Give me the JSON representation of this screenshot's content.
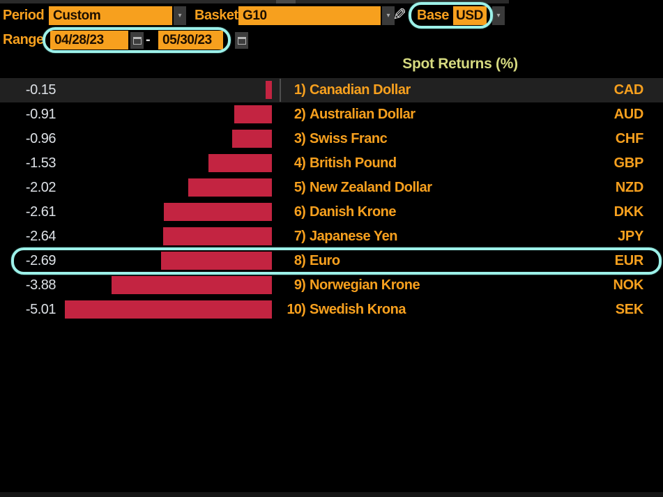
{
  "topbar": {
    "period": {
      "label": "Period",
      "value": "Custom"
    },
    "basket": {
      "label": "Basket",
      "value": "G10"
    },
    "base": {
      "label": "Base",
      "value": "USD"
    },
    "range": {
      "label": "Range",
      "start": "04/28/23",
      "separator": "-",
      "end": "05/30/23"
    }
  },
  "icons": {
    "pencil_glyph": "✎",
    "dropdown_glyph": "▾"
  },
  "chart_data": {
    "type": "bar",
    "orientation": "horizontal",
    "title": "Spot Returns (%)",
    "xlim": [
      -5.5,
      0
    ],
    "grid": false,
    "legend": "none",
    "categories": [
      "Canadian Dollar",
      "Australian Dollar",
      "Swiss Franc",
      "British Pound",
      "New Zealand Dollar",
      "Danish Krone",
      "Japanese Yen",
      "Euro",
      "Norwegian Krone",
      "Swedish Krona"
    ],
    "values": [
      -0.15,
      -0.91,
      -0.96,
      -1.53,
      -2.02,
      -2.61,
      -2.64,
      -2.69,
      -3.88,
      -5.01
    ],
    "codes": [
      "CAD",
      "AUD",
      "CHF",
      "GBP",
      "NZD",
      "DKK",
      "JPY",
      "EUR",
      "NOK",
      "SEK"
    ],
    "rows": [
      {
        "rank": "1)",
        "name": "Canadian Dollar",
        "code": "CAD",
        "value": -0.15,
        "value_label": "-0.15",
        "selected": true,
        "highlighted": false
      },
      {
        "rank": "2)",
        "name": "Australian Dollar",
        "code": "AUD",
        "value": -0.91,
        "value_label": "-0.91",
        "selected": false,
        "highlighted": false
      },
      {
        "rank": "3)",
        "name": "Swiss Franc",
        "code": "CHF",
        "value": -0.96,
        "value_label": "-0.96",
        "selected": false,
        "highlighted": false
      },
      {
        "rank": "4)",
        "name": "British Pound",
        "code": "GBP",
        "value": -1.53,
        "value_label": "-1.53",
        "selected": false,
        "highlighted": false
      },
      {
        "rank": "5)",
        "name": "New Zealand Dollar",
        "code": "NZD",
        "value": -2.02,
        "value_label": "-2.02",
        "selected": false,
        "highlighted": false
      },
      {
        "rank": "6)",
        "name": "Danish Krone",
        "code": "DKK",
        "value": -2.61,
        "value_label": "-2.61",
        "selected": false,
        "highlighted": false
      },
      {
        "rank": "7)",
        "name": "Japanese Yen",
        "code": "JPY",
        "value": -2.64,
        "value_label": "-2.64",
        "selected": false,
        "highlighted": false
      },
      {
        "rank": "8)",
        "name": "Euro",
        "code": "EUR",
        "value": -2.69,
        "value_label": "-2.69",
        "selected": false,
        "highlighted": true
      },
      {
        "rank": "9)",
        "name": "Norwegian Krone",
        "code": "NOK",
        "value": -3.88,
        "value_label": "-3.88",
        "selected": false,
        "highlighted": false
      },
      {
        "rank": "10)",
        "name": "Swedish Krona",
        "code": "SEK",
        "value": -5.01,
        "value_label": "-5.01",
        "selected": false,
        "highlighted": false
      }
    ]
  },
  "colors": {
    "accent_orange": "#f7a01e",
    "bar_red": "#c32441",
    "highlight_cyan": "#9df1e9",
    "header_yellow": "#d6da80",
    "value_white": "#dde1e6",
    "selected_row_bg": "#212121"
  }
}
